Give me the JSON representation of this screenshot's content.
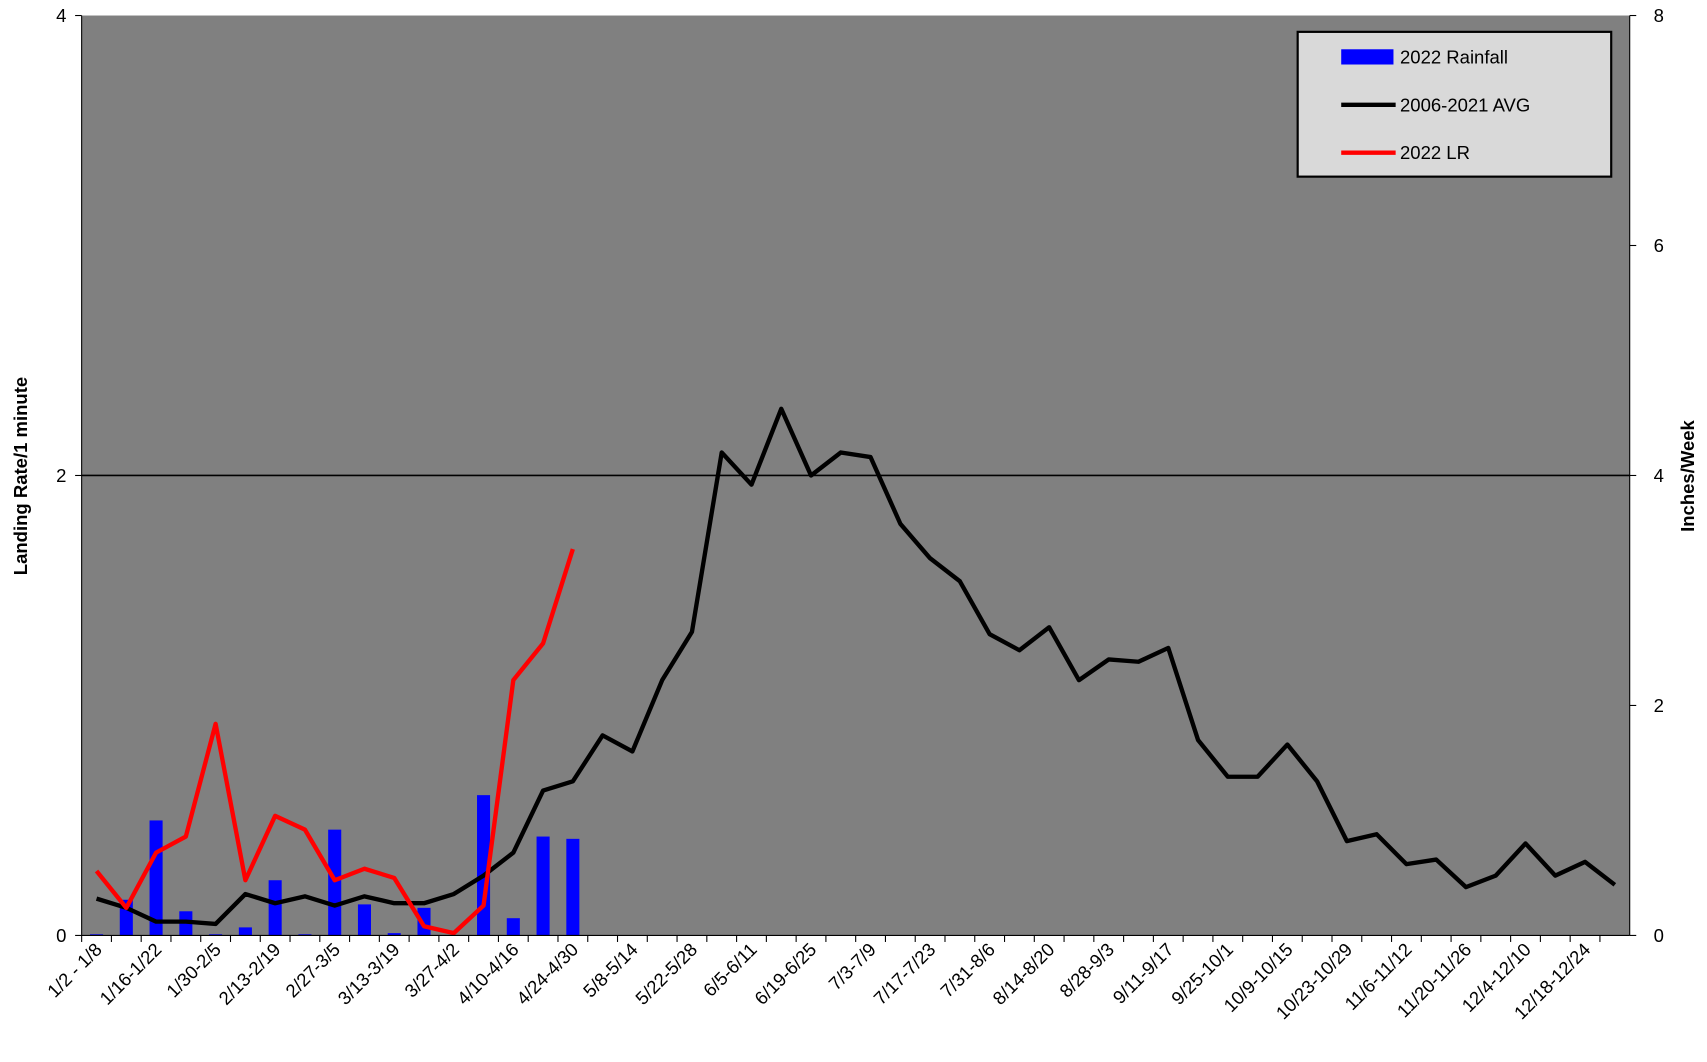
{
  "chart_data": {
    "type": "bar_line",
    "categories": [
      "1/2 - 1/8",
      null,
      "1/16-1/22",
      null,
      "1/30-2/5",
      null,
      "2/13-2/19",
      null,
      "2/27-3/5",
      null,
      "3/13-3/19",
      null,
      "3/27-4/2",
      null,
      "4/10-4/16",
      null,
      "4/24-4/30",
      null,
      "5/8-5/14",
      null,
      "5/22-5/28",
      null,
      "6/5-6/11",
      null,
      "6/19-6/25",
      null,
      "7/3-7/9",
      null,
      "7/17-7/23",
      null,
      "7/31-8/6",
      null,
      "8/14-8/20",
      null,
      "8/28-9/3",
      null,
      "9/11-9/17",
      null,
      "9/25-10/1",
      null,
      "10/9-10/15",
      null,
      "10/23-10/29",
      null,
      "11/6-11/12",
      null,
      "11/20-11/26",
      null,
      "12/4-12/10",
      null,
      "12/18-12/24",
      null
    ],
    "y_label": "Landing Rate/1 minute",
    "y2_label": "Inches/Week",
    "ylim": [
      0,
      4
    ],
    "yticks": [
      0,
      2,
      4
    ],
    "y2lim": [
      0,
      8
    ],
    "y2ticks": [
      0,
      2,
      4,
      6,
      8
    ],
    "grid": true,
    "legend": "upper right",
    "series": [
      {
        "name": "2022 Rainfall",
        "type": "bar",
        "axis": "y2",
        "color": "#0000ff",
        "values": [
          0.01,
          0.31,
          1.0,
          0.21,
          0.01,
          0.07,
          0.48,
          0.01,
          0.92,
          0.27,
          0.02,
          0.24,
          0,
          1.22,
          0.15,
          0.86,
          0.84,
          null,
          null,
          null,
          null,
          null,
          null,
          null,
          null,
          null,
          null,
          null,
          null,
          null,
          null,
          null,
          null,
          null,
          null,
          null,
          null,
          null,
          null,
          null,
          null,
          null,
          null,
          null,
          null,
          null,
          null,
          null,
          null,
          null,
          null,
          null
        ]
      },
      {
        "name": "2006-2021 AVG",
        "type": "line",
        "color": "#000000",
        "values": [
          0.16,
          0.12,
          0.06,
          0.06,
          0.05,
          0.18,
          0.14,
          0.17,
          0.13,
          0.17,
          0.14,
          0.14,
          0.18,
          0.26,
          0.36,
          0.63,
          0.67,
          0.87,
          0.8,
          1.11,
          1.32,
          2.1,
          1.96,
          2.29,
          2.0,
          2.1,
          2.08,
          1.79,
          1.64,
          1.54,
          1.31,
          1.24,
          1.34,
          1.11,
          1.2,
          1.19,
          1.25,
          0.85,
          0.69,
          0.69,
          0.83,
          0.67,
          0.41,
          0.44,
          0.31,
          0.33,
          0.21,
          0.26,
          0.4,
          0.26,
          0.32,
          0.22
        ]
      },
      {
        "name": "2022 LR",
        "type": "line",
        "color": "#ff0000",
        "values": [
          0.28,
          0.12,
          0.36,
          0.43,
          0.92,
          0.24,
          0.52,
          0.46,
          0.24,
          0.29,
          0.25,
          0.04,
          0.01,
          0.13,
          1.11,
          1.27,
          1.68,
          null,
          null,
          null,
          null,
          null,
          null,
          null,
          null,
          null,
          null,
          null,
          null,
          null,
          null,
          null,
          null,
          null,
          null,
          null,
          null,
          null,
          null,
          null,
          null,
          null,
          null,
          null,
          null,
          null,
          null,
          null,
          null,
          null,
          null,
          null
        ]
      }
    ]
  }
}
